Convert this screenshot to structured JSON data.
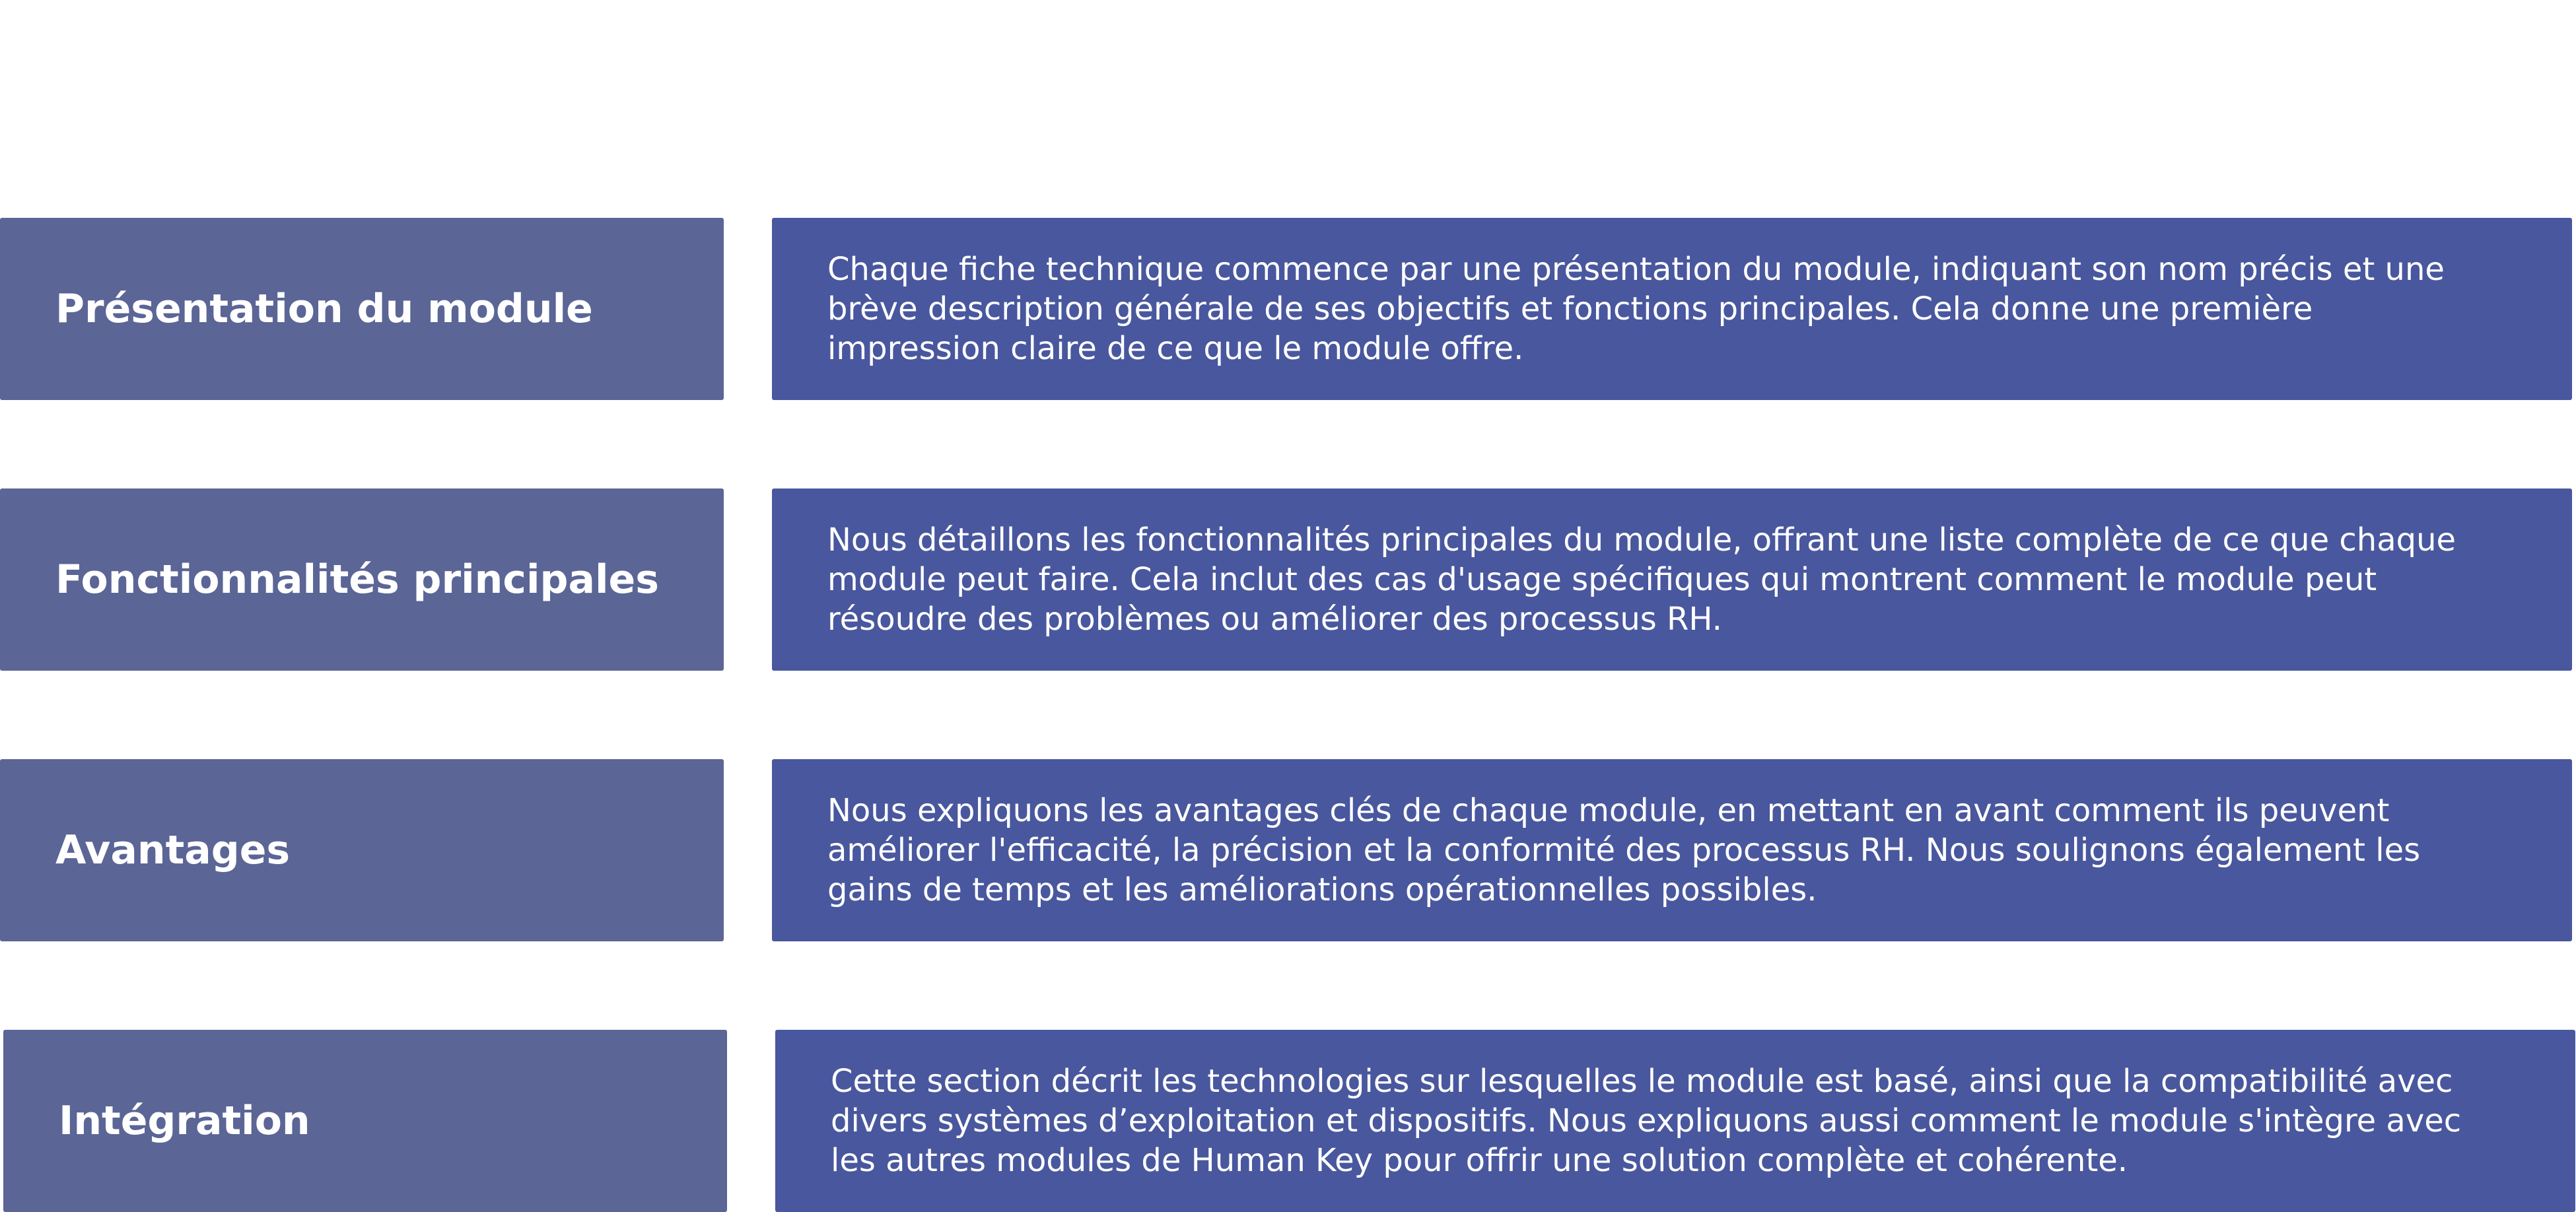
{
  "rows": [
    {
      "label": "Présentation du module",
      "lines": [
        "Chaque fiche technique commence par une présentation du module, indiquant son nom précis et une",
        "brève description générale de ses objectifs et fonctions principales. Cela donne une première",
        "impression claire de ce que le module offre."
      ]
    },
    {
      "label": "Fonctionnalités principales",
      "lines": [
        "Nous détaillons les fonctionnalités principales du module, offrant une liste complète de ce que chaque",
        "module peut faire. Cela inclut des cas d'usage spécifiques qui montrent comment le module peut",
        "résoudre des problèmes ou améliorer des processus RH."
      ]
    },
    {
      "label": "Avantages",
      "lines": [
        "Nous expliquons les avantages clés de chaque module, en mettant en avant comment ils peuvent",
        "améliorer l'efficacité, la précision et la conformité des processus RH. Nous soulignons également les",
        "gains de temps et les améliorations opérationnelles possibles."
      ]
    },
    {
      "label": "Intégration",
      "lines": [
        "Cette section décrit les technologies sur lesquelles le module est basé, ainsi que la compatibilité avec",
        "divers systèmes d’exploitation et dispositifs. Nous expliquons aussi comment le module s'intègre avec",
        "les autres modules de Human Key pour offrir une solution complète et cohérente."
      ]
    }
  ],
  "colors": {
    "label_box": "#5b6596",
    "desc_box": "#49579e",
    "text": "#ffffff",
    "background": "#ffffff"
  }
}
